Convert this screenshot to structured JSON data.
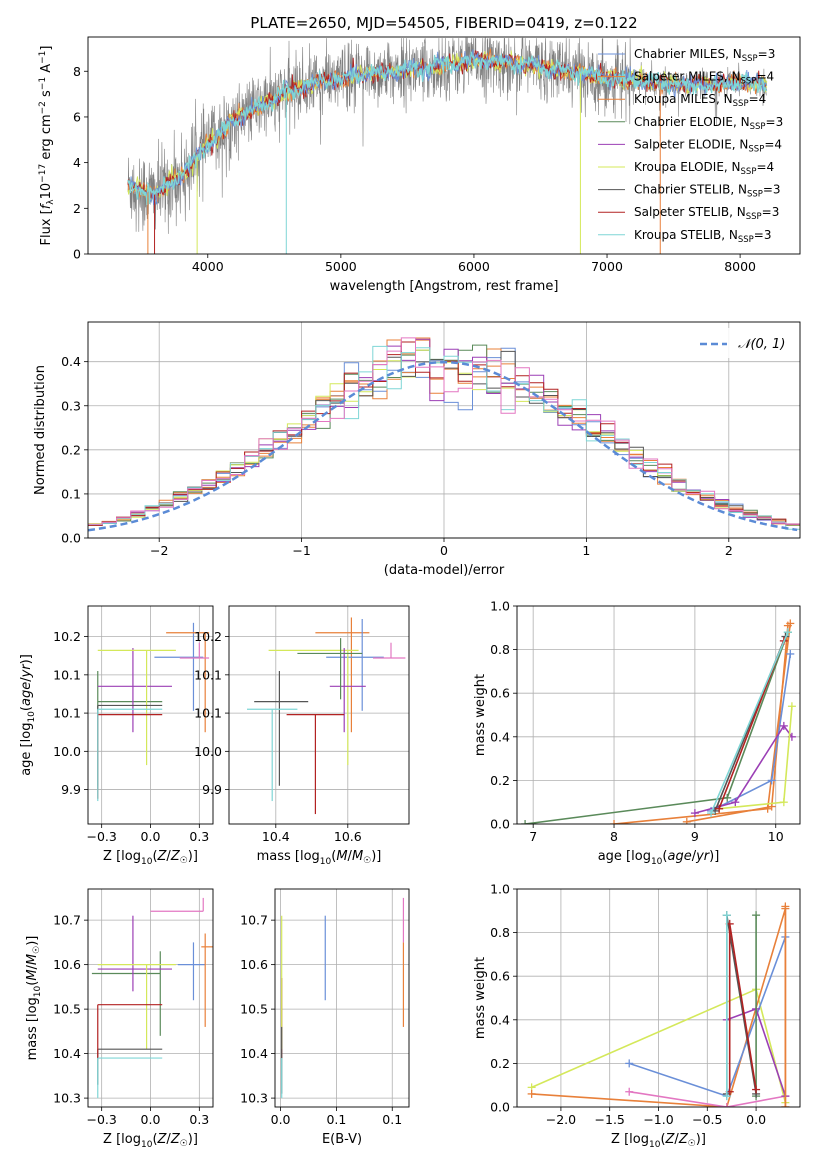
{
  "figure": {
    "title": "PLATE=2650, MJD=54505, FIBERID=0419, z=0.122"
  },
  "series_legend": [
    {
      "name": "Chabrier MILES, N",
      "sub": "SSP",
      "tail": "=3",
      "color": "#6a8fd8"
    },
    {
      "name": "Salpeter MILES, N",
      "sub": "SSP",
      "tail": "=4",
      "color": "#e8803a"
    },
    {
      "name": "Kroupa MILES, N",
      "sub": "SSP",
      "tail": "=4",
      "color": "#e8803a"
    },
    {
      "name": "Chabrier ELODIE, N",
      "sub": "SSP",
      "tail": "=3",
      "color": "#5a8a5a"
    },
    {
      "name": "Salpeter ELODIE, N",
      "sub": "SSP",
      "tail": "=4",
      "color": "#9b3fb5"
    },
    {
      "name": "Kroupa ELODIE, N",
      "sub": "SSP",
      "tail": "=4",
      "color": "#d4e85a"
    },
    {
      "name": "Chabrier STELIB, N",
      "sub": "SSP",
      "tail": "=3",
      "color": "#555555"
    },
    {
      "name": "Salpeter STELIB, N",
      "sub": "SSP",
      "tail": "=3",
      "color": "#b22222"
    },
    {
      "name": "Kroupa STELIB, N",
      "sub": "SSP",
      "tail": "=3",
      "color": "#7fd6d6"
    }
  ],
  "chart_data": [
    {
      "id": "spectrum",
      "type": "line",
      "xlabel": "wavelength [Angstrom, rest frame]",
      "ylabel": "Flux [f_λ10^-17 erg cm^-2 s^-1 A^-1]",
      "ylabel_parts": [
        "Flux [",
        "f",
        "λ",
        "10",
        "−17",
        " erg cm",
        "−2",
        " s",
        "−1",
        " A",
        "−1",
        "]"
      ],
      "xlim": [
        3100,
        8450
      ],
      "ylim": [
        0,
        9.5
      ],
      "xticks": [
        4000,
        5000,
        6000,
        7000,
        8000
      ],
      "yticks": [
        0,
        2,
        4,
        6,
        8
      ],
      "data_color": "#808080",
      "model_color": "#7fd6d6",
      "continuum": {
        "x": [
          3400,
          3600,
          3800,
          4000,
          4200,
          4400,
          4600,
          4800,
          5000,
          5200,
          5400,
          5600,
          5800,
          6000,
          6200,
          6400,
          6600,
          6800,
          7000,
          7200,
          7400,
          7600,
          7800,
          8000,
          8200
        ],
        "y": [
          3.0,
          2.6,
          3.4,
          4.8,
          5.9,
          6.5,
          7.1,
          7.5,
          7.7,
          7.9,
          8.0,
          8.1,
          8.3,
          8.5,
          8.4,
          8.3,
          8.1,
          7.9,
          7.7,
          7.6,
          7.5,
          7.4,
          7.4,
          7.5,
          7.4
        ]
      },
      "grid": false
    },
    {
      "id": "residuals",
      "type": "histogram",
      "xlabel": "(data-model)/error",
      "ylabel": "Normed distribution",
      "xlim": [
        -2.5,
        2.5
      ],
      "ylim": [
        0,
        0.49
      ],
      "xticks": [
        -2,
        -1,
        0,
        1,
        2
      ],
      "yticks": [
        0.0,
        0.1,
        0.2,
        0.3,
        0.4
      ],
      "bin_width": 0.1,
      "reference": {
        "label": "𝒩(0, 1)",
        "mean": 0,
        "sigma": 1,
        "color": "#5b8bd6"
      },
      "grid": true,
      "legend": "top-right"
    },
    {
      "id": "age-vs-Z",
      "type": "errorbar",
      "xlabel": "Z [log10(Z/Z☉)]",
      "ylabel": "age [log10(age/yr)]",
      "xlim": [
        -0.32,
        0.32
      ],
      "ylim": [
        9.905,
        10.19
      ],
      "xticks": [
        -0.25,
        0.0,
        0.25
      ],
      "yticks": [
        9.95,
        10.0,
        10.05,
        10.1,
        10.15
      ],
      "points": [
        {
          "x": 0.22,
          "y": 10.123,
          "xerr": [
            0.2,
            0.05
          ],
          "yerr": [
            0.07,
            0.045
          ],
          "color": "#6a8fd8"
        },
        {
          "x": 0.28,
          "y": 10.155,
          "xerr": [
            0.2,
            0.02
          ],
          "yerr": [
            0.13,
            0.0
          ],
          "color": "#e8803a"
        },
        {
          "x": -0.27,
          "y": 10.065,
          "xerr": [
            0.0,
            0.33
          ],
          "yerr": [
            0.11,
            0.04
          ],
          "color": "#5a8a5a"
        },
        {
          "x": -0.09,
          "y": 10.085,
          "xerr": [
            0.18,
            0.2
          ],
          "yerr": [
            0.06,
            0.05
          ],
          "color": "#9b3fb5"
        },
        {
          "x": -0.02,
          "y": 10.132,
          "xerr": [
            0.25,
            0.15
          ],
          "yerr": [
            0.15,
            0.0
          ],
          "color": "#d4e85a"
        },
        {
          "x": -0.27,
          "y": 10.06,
          "xerr": [
            0.0,
            0.33
          ],
          "yerr": [
            0.11,
            0.0
          ],
          "color": "#555555"
        },
        {
          "x": -0.27,
          "y": 10.048,
          "xerr": [
            0.0,
            0.33
          ],
          "yerr": [
            0.11,
            0.0
          ],
          "color": "#b22222"
        },
        {
          "x": -0.27,
          "y": 10.055,
          "xerr": [
            0.0,
            0.33
          ],
          "yerr": [
            0.12,
            0.0
          ],
          "color": "#7fd6d6"
        },
        {
          "x": 0.25,
          "y": 10.122,
          "xerr": [
            0.1,
            0.05
          ],
          "yerr": [
            0.0,
            0.02
          ],
          "color": "#e377c2"
        }
      ],
      "grid": true
    },
    {
      "id": "age-vs-mass",
      "type": "errorbar",
      "xlabel": "mass [log10(M/M☉)]",
      "ylabel": "",
      "xlim": [
        10.27,
        10.77
      ],
      "ylim": [
        9.905,
        10.19
      ],
      "xticks": [
        10.4,
        10.6
      ],
      "yticks": [
        9.95,
        10.0,
        10.05,
        10.1,
        10.15
      ],
      "points": [
        {
          "x": 10.61,
          "y": 10.155,
          "xerr": [
            0.1,
            0.05
          ],
          "yerr": [
            0.13,
            0.02
          ],
          "color": "#e8803a"
        },
        {
          "x": 10.64,
          "y": 10.123,
          "xerr": [
            0.1,
            0.06
          ],
          "yerr": [
            0.07,
            0.05
          ],
          "color": "#6a8fd8"
        },
        {
          "x": 10.6,
          "y": 10.132,
          "xerr": [
            0.22,
            0.03
          ],
          "yerr": [
            0.15,
            0.0
          ],
          "color": "#d4e85a"
        },
        {
          "x": 10.59,
          "y": 10.085,
          "xerr": [
            0.04,
            0.06
          ],
          "yerr": [
            0.06,
            0.05
          ],
          "color": "#9b3fb5"
        },
        {
          "x": 10.58,
          "y": 10.128,
          "xerr": [
            0.12,
            0.06
          ],
          "yerr": [
            0.06,
            0.02
          ],
          "color": "#5a8a5a"
        },
        {
          "x": 10.41,
          "y": 10.065,
          "xerr": [
            0.07,
            0.08
          ],
          "yerr": [
            0.11,
            0.04
          ],
          "color": "#555555"
        },
        {
          "x": 10.51,
          "y": 10.048,
          "xerr": [
            0.08,
            0.08
          ],
          "yerr": [
            0.13,
            0.0
          ],
          "color": "#b22222"
        },
        {
          "x": 10.39,
          "y": 10.055,
          "xerr": [
            0.07,
            0.07
          ],
          "yerr": [
            0.12,
            0.0
          ],
          "color": "#7fd6d6"
        },
        {
          "x": 10.72,
          "y": 10.122,
          "xerr": [
            0.05,
            0.04
          ],
          "yerr": [
            0.0,
            0.02
          ],
          "color": "#e377c2"
        }
      ],
      "grid": true
    },
    {
      "id": "weight-vs-age",
      "type": "line",
      "xlabel": "age [log10(age/yr)]",
      "ylabel": "mass weight",
      "xlim": [
        6.8,
        10.3
      ],
      "ylim": [
        0,
        1.0
      ],
      "xticks": [
        7,
        8,
        9,
        10
      ],
      "yticks": [
        0.0,
        0.2,
        0.4,
        0.6,
        0.8,
        1.0
      ],
      "series": [
        {
          "color": "#5a8a5a",
          "x": [
            6.9,
            9.4,
            10.15
          ],
          "y": [
            0.0,
            0.12,
            0.88
          ]
        },
        {
          "color": "#e8803a",
          "x": [
            8.0,
            9.9,
            10.18
          ],
          "y": [
            0.0,
            0.07,
            0.92
          ]
        },
        {
          "color": "#e8803a",
          "x": [
            8.9,
            9.95,
            10.15
          ],
          "y": [
            0.01,
            0.08,
            0.91
          ]
        },
        {
          "color": "#6a8fd8",
          "x": [
            9.2,
            9.95,
            10.18
          ],
          "y": [
            0.06,
            0.2,
            0.78
          ]
        },
        {
          "color": "#9b3fb5",
          "x": [
            9.0,
            9.5,
            10.1,
            10.2
          ],
          "y": [
            0.05,
            0.1,
            0.45,
            0.4
          ]
        },
        {
          "color": "#d4e85a",
          "x": [
            9.3,
            10.1,
            10.2
          ],
          "y": [
            0.07,
            0.1,
            0.54
          ]
        },
        {
          "color": "#555555",
          "x": [
            9.25,
            10.12
          ],
          "y": [
            0.06,
            0.86
          ]
        },
        {
          "color": "#b22222",
          "x": [
            9.3,
            10.1
          ],
          "y": [
            0.07,
            0.84
          ]
        },
        {
          "color": "#7fd6d6",
          "x": [
            9.2,
            10.15
          ],
          "y": [
            0.05,
            0.88
          ]
        }
      ],
      "grid": true
    },
    {
      "id": "mass-vs-Z",
      "type": "errorbar",
      "xlabel": "Z [log10(Z/Z☉)]",
      "ylabel": "mass [log10(M/M☉)]",
      "xlim": [
        -0.32,
        0.32
      ],
      "ylim": [
        10.28,
        10.77
      ],
      "xticks": [
        -0.25,
        0.0,
        0.25
      ],
      "yticks": [
        10.3,
        10.4,
        10.5,
        10.6,
        10.7
      ],
      "points": [
        {
          "x": 0.22,
          "y": 10.6,
          "xerr": [
            0.08,
            0.06
          ],
          "yerr": [
            0.08,
            0.05
          ],
          "color": "#6a8fd8"
        },
        {
          "x": 0.28,
          "y": 10.64,
          "xerr": [
            0.02,
            0.04
          ],
          "yerr": [
            0.18,
            0.03
          ],
          "color": "#e8803a"
        },
        {
          "x": 0.05,
          "y": 10.58,
          "xerr": [
            0.35,
            0.0
          ],
          "yerr": [
            0.14,
            0.05
          ],
          "color": "#5a8a5a"
        },
        {
          "x": -0.09,
          "y": 10.59,
          "xerr": [
            0.18,
            0.2
          ],
          "yerr": [
            0.05,
            0.12
          ],
          "color": "#9b3fb5"
        },
        {
          "x": -0.02,
          "y": 10.6,
          "xerr": [
            0.25,
            0.15
          ],
          "yerr": [
            0.19,
            0.0
          ],
          "color": "#d4e85a"
        },
        {
          "x": -0.27,
          "y": 10.41,
          "xerr": [
            0.0,
            0.33
          ],
          "yerr": [
            0.08,
            0.0
          ],
          "color": "#555555"
        },
        {
          "x": -0.27,
          "y": 10.51,
          "xerr": [
            0.0,
            0.33
          ],
          "yerr": [
            0.12,
            0.0
          ],
          "color": "#b22222"
        },
        {
          "x": -0.27,
          "y": 10.39,
          "xerr": [
            0.0,
            0.33
          ],
          "yerr": [
            0.09,
            0.0
          ],
          "color": "#7fd6d6"
        },
        {
          "x": 0.27,
          "y": 10.72,
          "xerr": [
            0.27,
            0.0
          ],
          "yerr": [
            0.0,
            0.03
          ],
          "color": "#e377c2"
        }
      ],
      "grid": true
    },
    {
      "id": "mass-vs-EBV",
      "type": "errorbar",
      "xlabel": "E(B-V)",
      "ylabel": "",
      "xlim": [
        -0.005,
        0.115
      ],
      "ylim": [
        10.28,
        10.77
      ],
      "xticks": [
        0.0,
        0.05,
        0.1
      ],
      "yticks": [
        10.3,
        10.4,
        10.5,
        10.6,
        10.7
      ],
      "points": [
        {
          "x": 0.04,
          "y": 10.6,
          "xerr": [
            0,
            0
          ],
          "yerr": [
            0.08,
            0.11
          ],
          "color": "#6a8fd8"
        },
        {
          "x": 0.11,
          "y": 10.6,
          "xerr": [
            0,
            0
          ],
          "yerr": [
            0.14,
            0.05
          ],
          "color": "#e8803a"
        },
        {
          "x": 0.11,
          "y": 10.72,
          "xerr": [
            0,
            0
          ],
          "yerr": [
            0.07,
            0.03
          ],
          "color": "#e377c2"
        },
        {
          "x": 0.001,
          "y": 10.51,
          "xerr": [
            0,
            0
          ],
          "yerr": [
            0.12,
            0.06
          ],
          "color": "#b22222"
        },
        {
          "x": 0.001,
          "y": 10.6,
          "xerr": [
            0,
            0
          ],
          "yerr": [
            0.19,
            0.11
          ],
          "color": "#d4e85a"
        },
        {
          "x": 0.001,
          "y": 10.41,
          "xerr": [
            0,
            0
          ],
          "yerr": [
            0.1,
            0.05
          ],
          "color": "#555555"
        },
        {
          "x": 0.001,
          "y": 10.39,
          "xerr": [
            0,
            0
          ],
          "yerr": [
            0.09,
            0.0
          ],
          "color": "#7fd6d6"
        }
      ],
      "grid": true
    },
    {
      "id": "weight-vs-Z",
      "type": "line",
      "xlabel": "Z [log10(Z/Z☉)]",
      "ylabel": "mass weight",
      "xlim": [
        -2.45,
        0.45
      ],
      "ylim": [
        0,
        1.0
      ],
      "xticks": [
        -2.0,
        -1.5,
        -1.0,
        -0.5,
        0.0
      ],
      "yticks": [
        0.0,
        0.2,
        0.4,
        0.6,
        0.8,
        1.0
      ],
      "series": [
        {
          "color": "#d4e85a",
          "x": [
            -2.3,
            0.0,
            0.3
          ],
          "y": [
            0.09,
            0.54,
            0.02
          ]
        },
        {
          "color": "#e8803a",
          "x": [
            -2.3,
            -0.3,
            0.3,
            0.3
          ],
          "y": [
            0.06,
            0.0,
            0.91,
            0.0
          ]
        },
        {
          "color": "#6a8fd8",
          "x": [
            -1.3,
            -0.3,
            0.3
          ],
          "y": [
            0.2,
            0.05,
            0.78
          ]
        },
        {
          "color": "#e377c2",
          "x": [
            -1.3,
            -0.3,
            0.3
          ],
          "y": [
            0.07,
            0.0,
            0.05
          ]
        },
        {
          "color": "#9b3fb5",
          "x": [
            -0.3,
            0.0,
            0.3
          ],
          "y": [
            0.4,
            0.45,
            0.05
          ]
        },
        {
          "color": "#5a8a5a",
          "x": [
            0.0,
            0.0
          ],
          "y": [
            0.05,
            0.88
          ]
        },
        {
          "color": "#555555",
          "x": [
            -0.3,
            -0.3,
            0.0
          ],
          "y": [
            0.06,
            0.88,
            0.06
          ]
        },
        {
          "color": "#b22222",
          "x": [
            -0.27,
            -0.27,
            0.0
          ],
          "y": [
            0.07,
            0.84,
            0.08
          ]
        },
        {
          "color": "#7fd6d6",
          "x": [
            -0.3,
            -0.3
          ],
          "y": [
            0.05,
            0.88
          ]
        },
        {
          "color": "#e8803a",
          "x": [
            0.3,
            0.3
          ],
          "y": [
            0.0,
            0.92
          ]
        }
      ],
      "grid": true
    }
  ]
}
